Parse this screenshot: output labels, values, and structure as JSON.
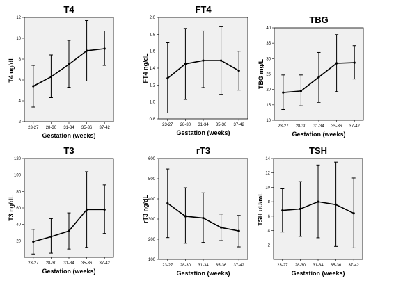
{
  "chart_data": [
    {
      "type": "line",
      "title": "T4",
      "xlabel": "Gestation (weeks)",
      "ylabel": "T4 ug/dL",
      "categories": [
        "23-27",
        "28-30",
        "31-34",
        "35-36",
        "37-42"
      ],
      "values": [
        5.4,
        6.3,
        7.5,
        8.8,
        9.0
      ],
      "error_low": [
        3.4,
        4.3,
        5.3,
        5.9,
        7.4
      ],
      "error_high": [
        7.4,
        8.4,
        9.8,
        11.7,
        10.7
      ],
      "ylim": [
        2,
        12
      ],
      "yticks": [
        "2",
        "4",
        "6",
        "8",
        "10",
        "12"
      ]
    },
    {
      "type": "line",
      "title": "FT4",
      "xlabel": "Gestation (weeks)",
      "ylabel": "FT4 ng/dL",
      "categories": [
        "23-27",
        "28-30",
        "31-34",
        "35-36",
        "37-42"
      ],
      "values": [
        1.28,
        1.45,
        1.49,
        1.49,
        1.37
      ],
      "error_low": [
        0.87,
        1.03,
        1.17,
        1.09,
        1.14
      ],
      "error_high": [
        1.7,
        1.87,
        1.84,
        1.89,
        1.6
      ],
      "ylim": [
        0.8,
        2.0
      ],
      "yticks": [
        "0.8",
        "1.0",
        "1.2",
        "1.4",
        "1.6",
        "1.8",
        "2.0"
      ]
    },
    {
      "type": "line",
      "title": "TBG",
      "xlabel": "Gestation (weeks)",
      "ylabel": "TBG mg/L",
      "categories": [
        "23-27",
        "28-30",
        "31-34",
        "35-36",
        "37-42"
      ],
      "values": [
        19.0,
        19.5,
        24.0,
        28.5,
        28.7
      ],
      "error_low": [
        13.5,
        14.7,
        15.8,
        19.3,
        23.4
      ],
      "error_high": [
        24.7,
        24.7,
        32.0,
        37.8,
        34.2
      ],
      "ylim": [
        10,
        40
      ],
      "yticks": [
        "10",
        "15",
        "20",
        "25",
        "30",
        "35",
        "40"
      ]
    },
    {
      "type": "line",
      "title": "T3",
      "xlabel": "Gestation (weeks)",
      "ylabel": "T3 ng/dL",
      "categories": [
        "23-27",
        "28-30",
        "31-34",
        "35-36",
        "37-42"
      ],
      "values": [
        19,
        25,
        32,
        58,
        58
      ],
      "error_low": [
        4,
        5,
        10,
        12,
        29
      ],
      "error_high": [
        34,
        47,
        54,
        104,
        88
      ],
      "ylim": [
        0,
        120
      ],
      "yticks": [
        "20",
        "40",
        "60",
        "80",
        "100",
        "120"
      ]
    },
    {
      "type": "line",
      "title": "rT3",
      "xlabel": "Gestation (weeks)",
      "ylabel": "rT3 ng/dL",
      "categories": [
        "23-27",
        "28-30",
        "31-34",
        "35-36",
        "37-42"
      ],
      "values": [
        378,
        314,
        305,
        258,
        241
      ],
      "error_low": [
        208,
        180,
        184,
        193,
        162
      ],
      "error_high": [
        548,
        455,
        430,
        325,
        318
      ],
      "ylim": [
        100,
        600
      ],
      "yticks": [
        "100",
        "200",
        "300",
        "400",
        "500",
        "600"
      ]
    },
    {
      "type": "line",
      "title": "TSH",
      "xlabel": "Gestation (weeks)",
      "ylabel": "TSH uU/mL",
      "categories": [
        "23-27",
        "28-30",
        "31-34",
        "35-36",
        "37-42"
      ],
      "values": [
        6.8,
        7.0,
        8.0,
        7.6,
        6.4
      ],
      "error_low": [
        3.8,
        3.2,
        3.0,
        1.8,
        1.6
      ],
      "error_high": [
        9.8,
        10.8,
        13.1,
        13.5,
        11.3
      ],
      "ylim": [
        0,
        14
      ],
      "yticks": [
        "2",
        "4",
        "6",
        "8",
        "10",
        "12",
        "14"
      ]
    }
  ]
}
